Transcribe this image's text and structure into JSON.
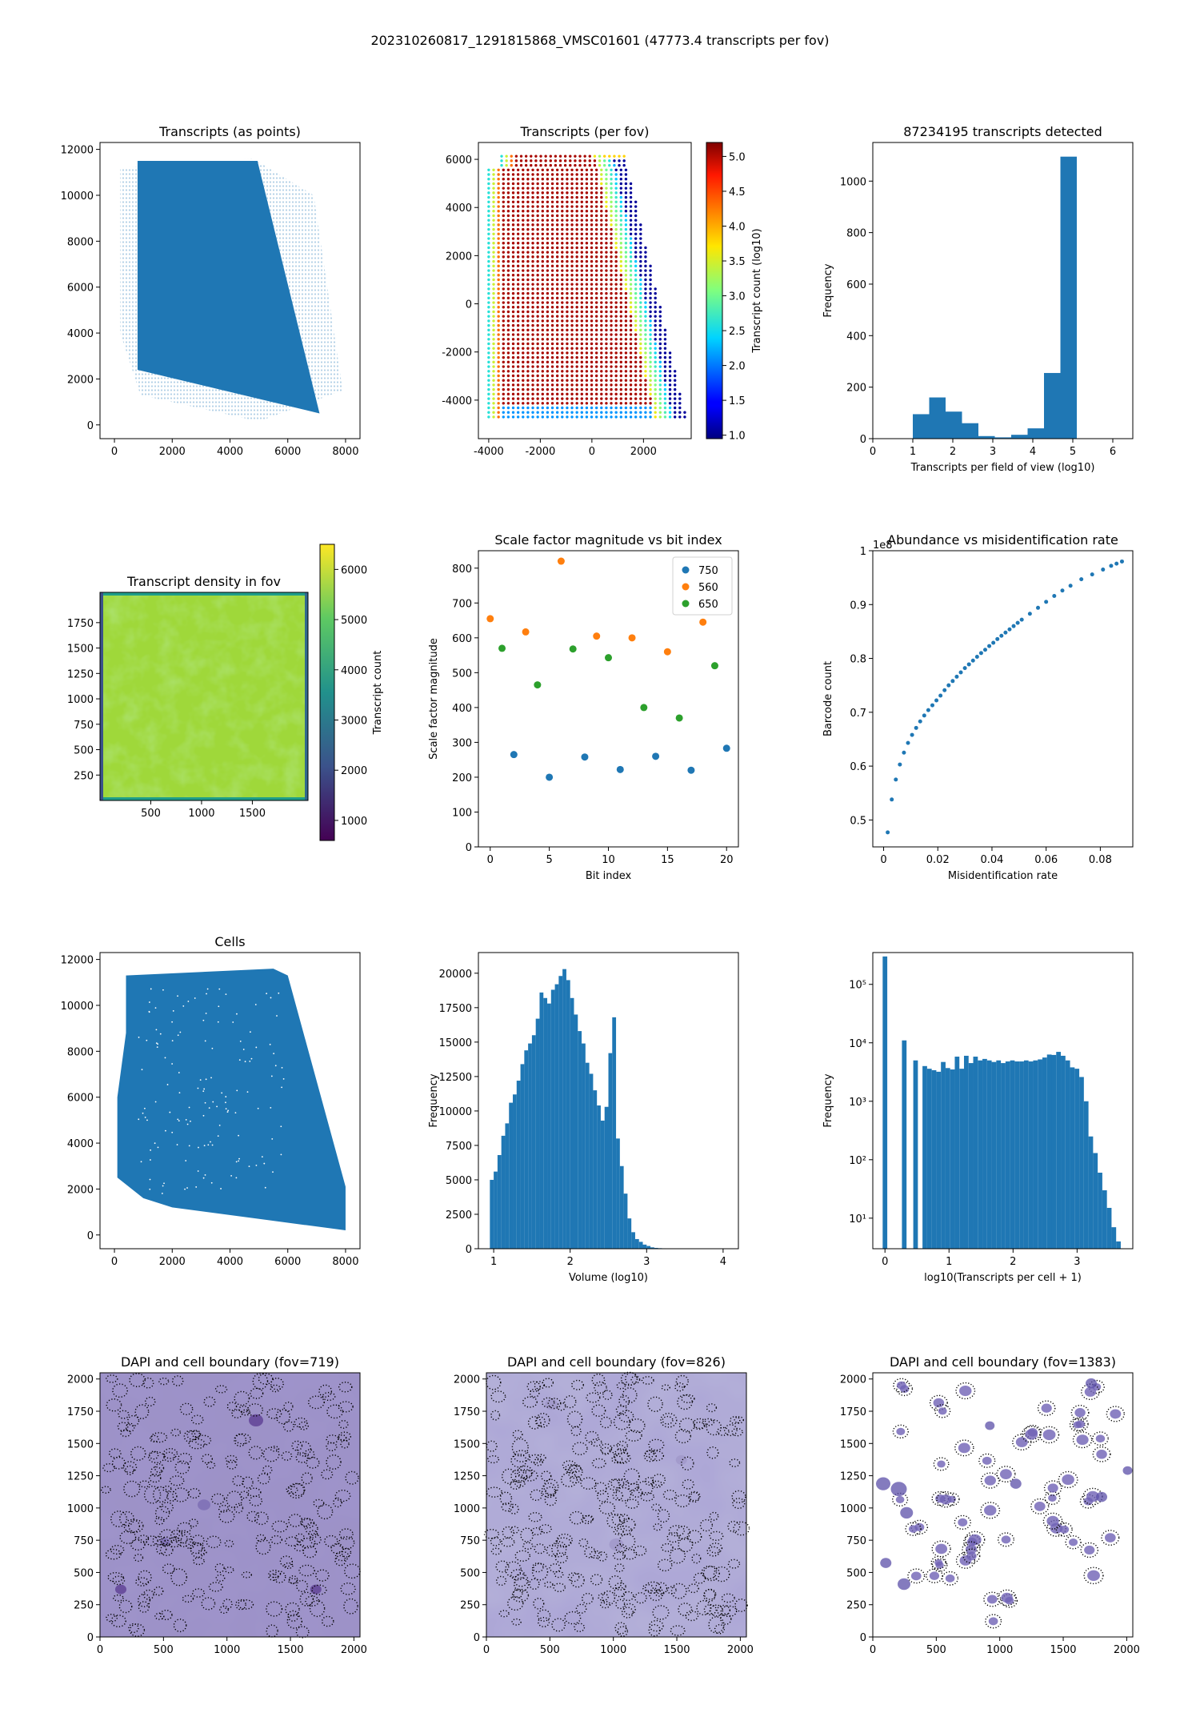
{
  "suptitle": "202310260817_1291815868_VMSC01601 (47773.4 transcripts per fov)",
  "colors": {
    "blue": "#1f77b4",
    "orange": "#ff7f0e",
    "green": "#2ca02c",
    "dapi": "#5b4f9e"
  },
  "chart_data": [
    {
      "id": "p1",
      "type": "scatter",
      "title": "Transcripts (as points)",
      "xlim": [
        -500,
        8500
      ],
      "ylim": [
        -600,
        12300
      ],
      "xticks": [
        0,
        2000,
        4000,
        6000,
        8000
      ],
      "yticks": [
        0,
        2000,
        4000,
        6000,
        8000,
        10000,
        12000
      ],
      "region": [
        [
          800,
          11500
        ],
        [
          4950,
          11500
        ],
        [
          7100,
          500
        ],
        [
          800,
          2400
        ]
      ]
    },
    {
      "id": "p2",
      "type": "heatmap",
      "title": "Transcripts (per fov)",
      "xlim": [
        -4400,
        3850
      ],
      "ylim": [
        -5600,
        6700
      ],
      "xticks": [
        -4000,
        -2000,
        0,
        2000
      ],
      "yticks": [
        -4000,
        -2000,
        0,
        2000,
        4000,
        6000
      ],
      "colorbar": {
        "label": "Transcript count (log10)",
        "range": [
          0.95,
          5.2
        ],
        "ticks": [
          1.0,
          1.5,
          2.0,
          2.5,
          3.0,
          3.5,
          4.0,
          4.5,
          5.0
        ]
      }
    },
    {
      "id": "p3",
      "type": "bar",
      "title": "87234195 transcripts detected",
      "xlabel": "Transcripts per field of view (log10)",
      "ylabel": "Frequency",
      "xlim": [
        0,
        6.5
      ],
      "ylim": [
        0,
        1150
      ],
      "xticks": [
        0,
        1,
        2,
        3,
        4,
        5,
        6
      ],
      "yticks": [
        0,
        200,
        400,
        600,
        800,
        1000
      ],
      "bin_edges": [
        1.0,
        1.41,
        1.82,
        2.23,
        2.64,
        3.05,
        3.46,
        3.87,
        4.28,
        4.69,
        5.1
      ],
      "values": [
        95,
        160,
        105,
        60,
        10,
        5,
        15,
        40,
        255,
        1095
      ]
    },
    {
      "id": "p4",
      "type": "heatmap",
      "title": "Transcript density in fov",
      "xlim": [
        0,
        2048
      ],
      "ylim": [
        0,
        2048
      ],
      "xticks": [
        500,
        1000,
        1500
      ],
      "yticks": [
        250,
        500,
        750,
        1000,
        1250,
        1500,
        1750
      ],
      "colorbar": {
        "label": "Transcript count",
        "range": [
          600,
          6500
        ],
        "ticks": [
          1000,
          2000,
          3000,
          4000,
          5000,
          6000
        ]
      }
    },
    {
      "id": "p5",
      "type": "scatter",
      "title": "Scale factor magnitude vs bit index",
      "xlabel": "Bit index",
      "ylabel": "Scale factor magnitude",
      "xlim": [
        -1,
        21
      ],
      "ylim": [
        0,
        850
      ],
      "xticks": [
        0,
        5,
        10,
        15,
        20
      ],
      "yticks": [
        0,
        100,
        200,
        300,
        400,
        500,
        600,
        700,
        800
      ],
      "legend_position": "top-right",
      "series": [
        {
          "name": "750",
          "color": "#1f77b4",
          "x": [
            2,
            5,
            8,
            11,
            14,
            17,
            20
          ],
          "y": [
            265,
            200,
            258,
            222,
            260,
            220,
            283
          ]
        },
        {
          "name": "560",
          "color": "#ff7f0e",
          "x": [
            0,
            3,
            6,
            9,
            12,
            15,
            18
          ],
          "y": [
            655,
            617,
            820,
            605,
            600,
            560,
            645
          ]
        },
        {
          "name": "650",
          "color": "#2ca02c",
          "x": [
            1,
            4,
            7,
            10,
            13,
            16,
            19
          ],
          "y": [
            570,
            465,
            568,
            543,
            400,
            370,
            520
          ]
        }
      ]
    },
    {
      "id": "p6",
      "type": "scatter",
      "title": "Abundance vs misidentification rate",
      "xlabel": "Misidentification rate",
      "ylabel": "Barcode count",
      "offset_text": "1e8",
      "xlim": [
        -0.004,
        0.092
      ],
      "ylim": [
        0.45,
        1.0
      ],
      "xticks": [
        0.0,
        0.02,
        0.04,
        0.06,
        0.08
      ],
      "yticks": [
        0.5,
        0.6,
        0.7,
        0.8,
        0.9,
        1.0
      ],
      "x": [
        0.0015,
        0.003,
        0.0045,
        0.006,
        0.0075,
        0.009,
        0.0105,
        0.012,
        0.0135,
        0.015,
        0.0165,
        0.018,
        0.0195,
        0.021,
        0.0225,
        0.024,
        0.0255,
        0.027,
        0.0285,
        0.03,
        0.0315,
        0.033,
        0.0345,
        0.036,
        0.0375,
        0.039,
        0.0405,
        0.042,
        0.0435,
        0.045,
        0.0465,
        0.048,
        0.0495,
        0.051,
        0.054,
        0.057,
        0.06,
        0.063,
        0.066,
        0.069,
        0.073,
        0.077,
        0.081,
        0.084,
        0.086,
        0.088
      ],
      "y": [
        0.477,
        0.538,
        0.575,
        0.603,
        0.625,
        0.643,
        0.658,
        0.671,
        0.683,
        0.694,
        0.704,
        0.713,
        0.722,
        0.731,
        0.741,
        0.75,
        0.758,
        0.766,
        0.774,
        0.782,
        0.789,
        0.796,
        0.803,
        0.81,
        0.816,
        0.823,
        0.829,
        0.836,
        0.842,
        0.848,
        0.854,
        0.86,
        0.866,
        0.872,
        0.883,
        0.894,
        0.905,
        0.916,
        0.926,
        0.935,
        0.947,
        0.956,
        0.965,
        0.972,
        0.976,
        0.98
      ]
    },
    {
      "id": "p7",
      "type": "scatter",
      "title": "Cells",
      "xlim": [
        -500,
        8500
      ],
      "ylim": [
        -600,
        12300
      ],
      "xticks": [
        0,
        2000,
        4000,
        6000,
        8000
      ],
      "yticks": [
        0,
        2000,
        4000,
        6000,
        8000,
        10000,
        12000
      ],
      "region": [
        [
          400,
          11300
        ],
        [
          5500,
          11600
        ],
        [
          6000,
          11300
        ],
        [
          8000,
          2100
        ],
        [
          8000,
          200
        ],
        [
          2000,
          1200
        ],
        [
          1000,
          1600
        ],
        [
          100,
          2500
        ],
        [
          100,
          6000
        ],
        [
          400,
          8800
        ]
      ]
    },
    {
      "id": "p8",
      "type": "bar",
      "title": "",
      "xlabel": "Volume (log10)",
      "ylabel": "Frequency",
      "xlim": [
        0.8,
        4.2
      ],
      "ylim": [
        0,
        21500
      ],
      "xticks": [
        1,
        2,
        3,
        4
      ],
      "yticks": [
        0,
        2500,
        5000,
        7500,
        10000,
        12500,
        15000,
        17500,
        20000
      ],
      "bin_edges": [
        0.95,
        1.0,
        1.05,
        1.1,
        1.15,
        1.2,
        1.25,
        1.3,
        1.35,
        1.4,
        1.45,
        1.5,
        1.55,
        1.6,
        1.65,
        1.7,
        1.75,
        1.8,
        1.85,
        1.9,
        1.95,
        2.0,
        2.05,
        2.1,
        2.15,
        2.2,
        2.25,
        2.3,
        2.35,
        2.4,
        2.45,
        2.5,
        2.55,
        2.6,
        2.65,
        2.7,
        2.75,
        2.8,
        2.85,
        2.9,
        2.95,
        3.0,
        3.05,
        3.1,
        3.15,
        3.2,
        3.25,
        3.3,
        3.35,
        3.4,
        3.45,
        3.5,
        3.55,
        3.6,
        3.65,
        3.7,
        3.75,
        3.8
      ],
      "values": [
        5000,
        5600,
        6800,
        8200,
        9100,
        10600,
        11200,
        12200,
        13400,
        14400,
        14900,
        15500,
        16700,
        18600,
        18200,
        17800,
        18800,
        19200,
        19800,
        20300,
        19500,
        18200,
        17000,
        15800,
        14900,
        13500,
        12700,
        11500,
        10400,
        9300,
        10300,
        14200,
        16800,
        8000,
        6000,
        4000,
        2200,
        1200,
        700,
        500,
        300,
        200,
        100,
        60,
        40,
        30,
        20,
        15,
        10,
        5,
        3,
        2,
        1,
        1,
        0,
        0,
        0
      ]
    },
    {
      "id": "p9",
      "type": "bar",
      "title": "",
      "xlabel": "log10(Transcripts per cell + 1)",
      "ylabel": "Frequency",
      "yscale": "log",
      "xlim": [
        -0.19,
        3.87
      ],
      "ylim": [
        3,
        350000
      ],
      "xticks": [
        0,
        1,
        2,
        3
      ],
      "yticks": [
        10,
        100,
        1000,
        10000,
        100000
      ],
      "ytick_labels": [
        "10¹",
        "10²",
        "10³",
        "10⁴",
        "10⁵"
      ],
      "bin_edges": [
        -0.036,
        0.036,
        0.265,
        0.337,
        0.442,
        0.514,
        0.586,
        0.658,
        0.73,
        0.802,
        0.874,
        0.946,
        1.018,
        1.09,
        1.162,
        1.234,
        1.306,
        1.378,
        1.45,
        1.522,
        1.594,
        1.666,
        1.738,
        1.81,
        1.882,
        1.954,
        2.026,
        2.098,
        2.17,
        2.242,
        2.314,
        2.386,
        2.458,
        2.53,
        2.602,
        2.674,
        2.746,
        2.818,
        2.89,
        2.962,
        3.034,
        3.106,
        3.178,
        3.25,
        3.322,
        3.394,
        3.466,
        3.538,
        3.61,
        3.682
      ],
      "values": [
        300000,
        0,
        11000,
        0,
        5000,
        0,
        4000,
        3600,
        3400,
        3200,
        4700,
        3700,
        3500,
        5800,
        3600,
        6000,
        4500,
        5800,
        5000,
        5300,
        5000,
        4700,
        5000,
        4500,
        4800,
        5000,
        4800,
        4800,
        5000,
        4800,
        5000,
        5200,
        5600,
        6300,
        6200,
        7000,
        6000,
        5000,
        3800,
        3600,
        2600,
        1000,
        250,
        130,
        60,
        30,
        15,
        7,
        4
      ],
      "gaps": [
        [
          0.036,
          0.265
        ],
        [
          0.337,
          0.442
        ],
        [
          0.514,
          0.586
        ]
      ]
    },
    {
      "id": "p10",
      "type": "heatmap",
      "title": "DAPI and cell boundary (fov=719)",
      "xlim": [
        0,
        2048
      ],
      "ylim": [
        0,
        2048
      ],
      "xticks": [
        0,
        500,
        1000,
        1500,
        2000
      ],
      "yticks": [
        0,
        250,
        500,
        750,
        1000,
        1250,
        1500,
        1750,
        2000
      ]
    },
    {
      "id": "p11",
      "type": "heatmap",
      "title": "DAPI and cell boundary (fov=826)",
      "xlim": [
        0,
        2048
      ],
      "ylim": [
        0,
        2048
      ],
      "xticks": [
        0,
        500,
        1000,
        1500,
        2000
      ],
      "yticks": [
        0,
        250,
        500,
        750,
        1000,
        1250,
        1500,
        1750,
        2000
      ]
    },
    {
      "id": "p12",
      "type": "heatmap",
      "title": "DAPI and cell boundary (fov=1383)",
      "xlim": [
        0,
        2048
      ],
      "ylim": [
        0,
        2048
      ],
      "xticks": [
        0,
        500,
        1000,
        1500,
        2000
      ],
      "yticks": [
        0,
        250,
        500,
        750,
        1000,
        1250,
        1500,
        1750,
        2000
      ]
    }
  ]
}
